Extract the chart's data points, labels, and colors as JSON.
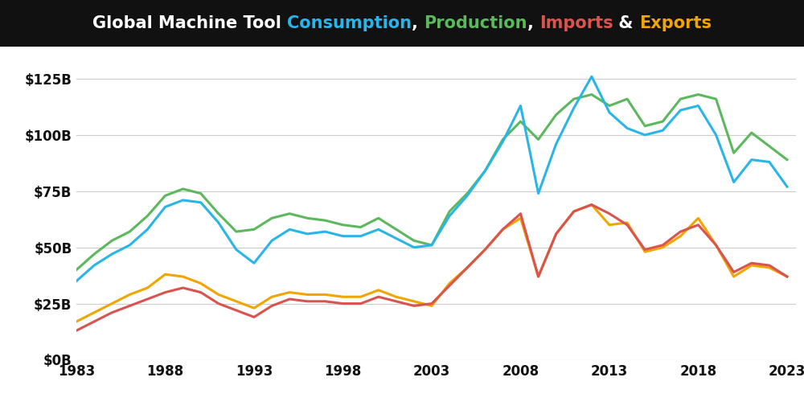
{
  "title_parts": [
    {
      "text": "Global Machine Tool ",
      "color": "#ffffff"
    },
    {
      "text": "Consumption",
      "color": "#29b5e8"
    },
    {
      "text": ", ",
      "color": "#ffffff"
    },
    {
      "text": "Production",
      "color": "#5cb85c"
    },
    {
      "text": ", ",
      "color": "#ffffff"
    },
    {
      "text": "Imports",
      "color": "#d9534f"
    },
    {
      "text": " & ",
      "color": "#ffffff"
    },
    {
      "text": "Exports",
      "color": "#f0a500"
    }
  ],
  "title_bg": "#111111",
  "plot_bg": "#ffffff",
  "fig_bg": "#ffffff",
  "grid_color": "#cccccc",
  "years": [
    1983,
    1984,
    1985,
    1986,
    1987,
    1988,
    1989,
    1990,
    1991,
    1992,
    1993,
    1994,
    1995,
    1996,
    1997,
    1998,
    1999,
    2000,
    2001,
    2002,
    2003,
    2004,
    2005,
    2006,
    2007,
    2008,
    2009,
    2010,
    2011,
    2012,
    2013,
    2014,
    2015,
    2016,
    2017,
    2018,
    2019,
    2020,
    2021,
    2022,
    2023
  ],
  "consumption": [
    35,
    42,
    47,
    51,
    58,
    68,
    71,
    70,
    61,
    49,
    43,
    53,
    58,
    56,
    57,
    55,
    55,
    58,
    54,
    50,
    51,
    64,
    73,
    84,
    97,
    113,
    74,
    96,
    112,
    126,
    110,
    103,
    100,
    102,
    111,
    113,
    100,
    79,
    89,
    88,
    77
  ],
  "production": [
    40,
    47,
    53,
    57,
    64,
    73,
    76,
    74,
    65,
    57,
    58,
    63,
    65,
    63,
    62,
    60,
    59,
    63,
    58,
    53,
    51,
    66,
    74,
    84,
    98,
    106,
    98,
    109,
    116,
    118,
    113,
    116,
    104,
    106,
    116,
    118,
    116,
    92,
    101,
    95,
    89
  ],
  "imports": [
    13,
    17,
    21,
    24,
    27,
    30,
    32,
    30,
    25,
    22,
    19,
    24,
    27,
    26,
    26,
    25,
    25,
    28,
    26,
    24,
    25,
    33,
    41,
    49,
    58,
    65,
    37,
    56,
    66,
    69,
    65,
    60,
    49,
    51,
    57,
    60,
    51,
    39,
    43,
    42,
    37
  ],
  "exports": [
    17,
    21,
    25,
    29,
    32,
    38,
    37,
    34,
    29,
    26,
    23,
    28,
    30,
    29,
    29,
    28,
    28,
    31,
    28,
    26,
    24,
    34,
    41,
    49,
    58,
    63,
    37,
    56,
    66,
    69,
    60,
    61,
    48,
    50,
    55,
    63,
    51,
    37,
    42,
    41,
    37
  ],
  "consumption_color": "#29b5e8",
  "production_color": "#5cb85c",
  "imports_color": "#d9534f",
  "exports_color": "#f0a500",
  "ylim": [
    0,
    135
  ],
  "yticks": [
    0,
    25,
    50,
    75,
    100,
    125
  ],
  "ytick_labels": [
    "$0B",
    "$25B",
    "$50B",
    "$75B",
    "$100B",
    "$125B"
  ],
  "xticks": [
    1983,
    1988,
    1993,
    1998,
    2003,
    2008,
    2013,
    2018,
    2023
  ],
  "line_width": 2.2,
  "title_fontsize": 15,
  "tick_fontsize": 12
}
